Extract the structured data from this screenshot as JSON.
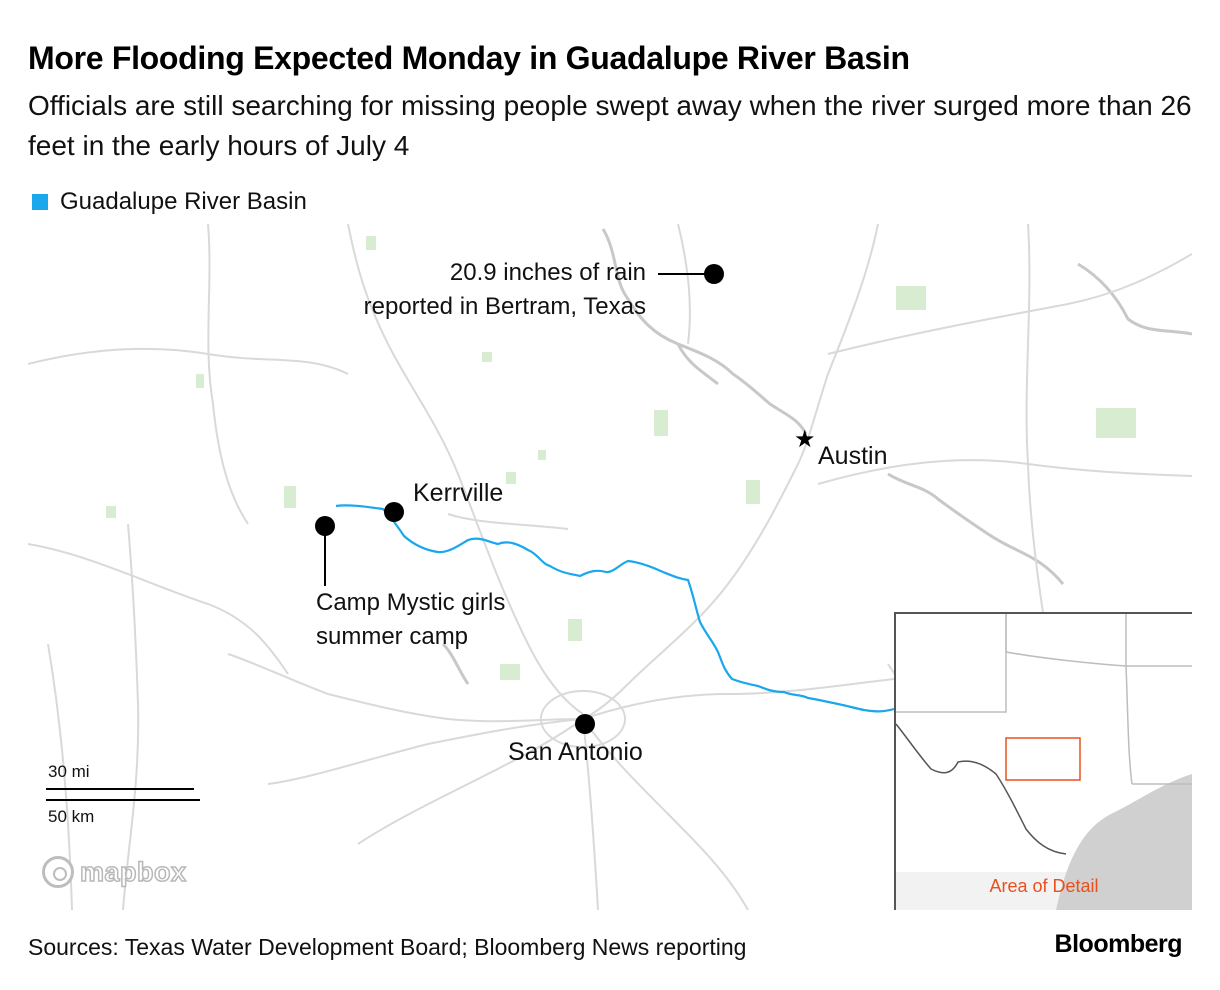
{
  "title": "More Flooding Expected Monday in Guadalupe River Basin",
  "subtitle": "Officials are still searching for missing people swept away when the river surged more than 26 feet in the early hours of July 4",
  "legend": {
    "label": "Guadalupe River Basin",
    "color": "#1aa7ec"
  },
  "map": {
    "places": {
      "austin": "Austin",
      "kerrville": "Kerrville",
      "san_antonio": "San Antonio"
    },
    "annotations": {
      "bertram_line1": "20.9 inches of rain",
      "bertram_line2": "reported in Bertram, Texas",
      "camp_line1": "Camp Mystic girls",
      "camp_line2": "summer camp"
    },
    "scale": {
      "miles": "30 mi",
      "km": "50 km"
    },
    "attribution": "mapbox",
    "inset": {
      "label": "Area of Detail",
      "label_color": "#e8501e"
    },
    "colors": {
      "road": "#d9d9d9",
      "water": "#c8c8c8",
      "park": "#d7ecd0",
      "river": "#1aa7ec"
    }
  },
  "source": "Sources: Texas Water Development Board; Bloomberg News reporting",
  "brand": "Bloomberg"
}
